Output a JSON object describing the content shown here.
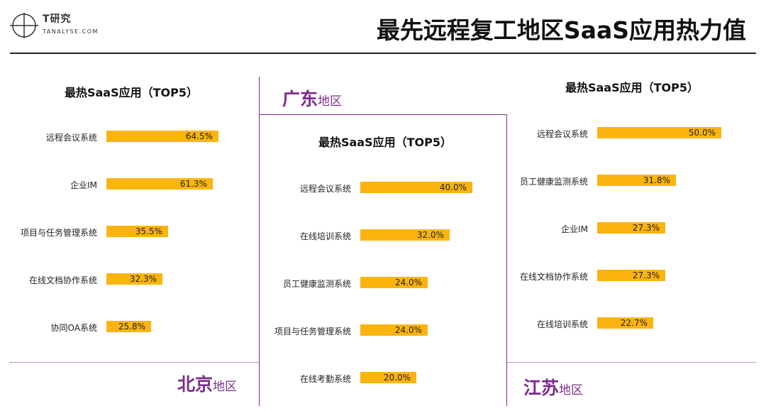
{
  "header": {
    "logo_cn": "T研究",
    "logo_en": "TANALYSE.COM",
    "title": "最先远程复工地区SaaS应用热力值"
  },
  "colors": {
    "bar": "#fbb40f",
    "accent": "#7b2d8e"
  },
  "chart_data": [
    {
      "type": "bar",
      "region": "北京",
      "region_suffix": "地区",
      "title": "最热SaaS应用（TOP5）",
      "categories": [
        "远程会议系统",
        "企业IM",
        "项目与任务管理系统",
        "在线文档协作系统",
        "协同OA系统"
      ],
      "values": [
        64.5,
        61.3,
        35.5,
        32.3,
        25.8
      ],
      "value_labels": [
        "64.5%",
        "61.3%",
        "35.5%",
        "32.3%",
        "25.8%"
      ],
      "unit": "%"
    },
    {
      "type": "bar",
      "region": "广东",
      "region_suffix": "地区",
      "title": "最热SaaS应用（TOP5）",
      "categories": [
        "远程会议系统",
        "在线培训系统",
        "员工健康监测系统",
        "项目与任务管理系统",
        "在线考勤系统"
      ],
      "values": [
        40.0,
        32.0,
        24.0,
        24.0,
        20.0
      ],
      "value_labels": [
        "40.0%",
        "32.0%",
        "24.0%",
        "24.0%",
        "20.0%"
      ],
      "unit": "%"
    },
    {
      "type": "bar",
      "region": "江苏",
      "region_suffix": "地区",
      "title": "最热SaaS应用（TOP5）",
      "categories": [
        "远程会议系统",
        "员工健康监测系统",
        "企业IM",
        "在线文档协作系统",
        "在线培训系统"
      ],
      "values": [
        50.0,
        31.8,
        27.3,
        27.3,
        22.7
      ],
      "value_labels": [
        "50.0%",
        "31.8%",
        "27.3%",
        "27.3%",
        "22.7%"
      ],
      "unit": "%"
    }
  ]
}
